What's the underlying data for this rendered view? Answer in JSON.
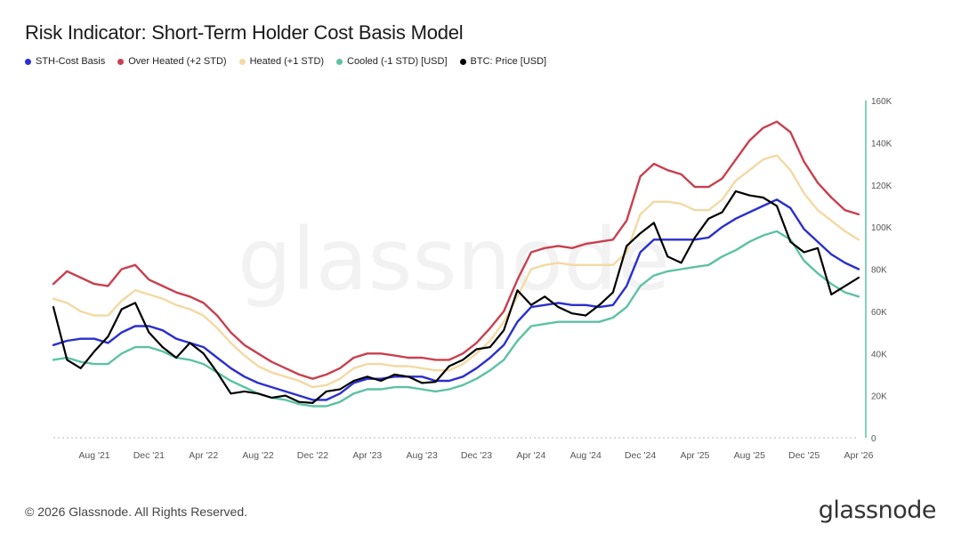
{
  "title": "Risk Indicator: Short-Term Holder Cost Basis Model",
  "footer": "© 2026 Glassnode. All Rights Reserved.",
  "brand": "glassnode",
  "watermark": "glassnode",
  "legend": [
    {
      "label": "STH-Cost Basis",
      "color": "#2a2fcf"
    },
    {
      "label": "Over Heated (+2 STD)",
      "color": "#c8404f"
    },
    {
      "label": "Heated (+1 STD)",
      "color": "#f3d9a3"
    },
    {
      "label": "Cooled (-1 STD) [USD]",
      "color": "#5cc2a4"
    },
    {
      "label": "BTC: Price [USD]",
      "color": "#000000"
    }
  ],
  "chart_data": {
    "type": "line",
    "ylim": [
      0,
      160000
    ],
    "y_ticks": [
      0,
      20000,
      40000,
      60000,
      80000,
      100000,
      120000,
      140000,
      160000
    ],
    "y_tick_labels": [
      "0",
      "20K",
      "40K",
      "60K",
      "80K",
      "100K",
      "120K",
      "140K",
      "160K"
    ],
    "x_tick_labels": [
      "Aug '21",
      "Dec '21",
      "Apr '22",
      "Aug '22",
      "Dec '22",
      "Apr '23",
      "Aug '23",
      "Dec '23",
      "Apr '24",
      "Aug '24",
      "Dec '24",
      "Apr '25",
      "Aug '25",
      "Dec '25",
      "Apr '26"
    ],
    "x_start": "2021-05",
    "x_end": "2026-04",
    "x": [
      "2021-05",
      "2021-06",
      "2021-07",
      "2021-08",
      "2021-09",
      "2021-10",
      "2021-11",
      "2021-12",
      "2022-01",
      "2022-02",
      "2022-03",
      "2022-04",
      "2022-05",
      "2022-06",
      "2022-07",
      "2022-08",
      "2022-09",
      "2022-10",
      "2022-11",
      "2022-12",
      "2023-01",
      "2023-02",
      "2023-03",
      "2023-04",
      "2023-05",
      "2023-06",
      "2023-07",
      "2023-08",
      "2023-09",
      "2023-10",
      "2023-11",
      "2023-12",
      "2024-01",
      "2024-02",
      "2024-03",
      "2024-04",
      "2024-05",
      "2024-06",
      "2024-07",
      "2024-08",
      "2024-09",
      "2024-10",
      "2024-11",
      "2024-12",
      "2025-01",
      "2025-02",
      "2025-03",
      "2025-04",
      "2025-05",
      "2025-06",
      "2025-07",
      "2025-08",
      "2025-09",
      "2025-10",
      "2025-11",
      "2025-12",
      "2026-01",
      "2026-02",
      "2026-03",
      "2026-04"
    ],
    "series": [
      {
        "name": "Over Heated (+2 STD)",
        "color": "#c8404f",
        "values": [
          73000,
          79000,
          76000,
          73000,
          72000,
          80000,
          82000,
          75000,
          72000,
          69000,
          67000,
          64000,
          58000,
          50000,
          44000,
          40000,
          36000,
          33000,
          30000,
          28000,
          30000,
          33000,
          38000,
          40000,
          40000,
          39000,
          38000,
          38000,
          37000,
          37000,
          40000,
          45000,
          52000,
          60000,
          75000,
          88000,
          90000,
          91000,
          90000,
          92000,
          93000,
          94000,
          103000,
          124000,
          130000,
          127000,
          125000,
          119000,
          119000,
          123000,
          132000,
          141000,
          147000,
          150000,
          145000,
          131000,
          121000,
          114000,
          108000,
          106000
        ]
      },
      {
        "name": "Heated (+1 STD)",
        "color": "#f3d9a3",
        "values": [
          66000,
          64000,
          60000,
          58000,
          58000,
          65000,
          70000,
          68000,
          66000,
          63000,
          61000,
          58000,
          52000,
          45000,
          39000,
          34000,
          31000,
          29000,
          27000,
          24000,
          25000,
          28000,
          33000,
          35000,
          35000,
          34000,
          34000,
          33000,
          32000,
          32000,
          35000,
          40000,
          46000,
          55000,
          67000,
          80000,
          82000,
          83000,
          82000,
          82000,
          82000,
          82000,
          88000,
          106000,
          112000,
          112000,
          111000,
          108000,
          108000,
          113000,
          122000,
          127000,
          132000,
          134000,
          127000,
          116000,
          108000,
          103000,
          98000,
          94000
        ]
      },
      {
        "name": "STH-Cost Basis",
        "color": "#2a2fcf",
        "values": [
          44000,
          46000,
          47000,
          47000,
          45000,
          50000,
          53000,
          53000,
          51000,
          47000,
          45000,
          43000,
          38000,
          33000,
          29000,
          26000,
          24000,
          22000,
          20000,
          18000,
          18000,
          21000,
          26000,
          28000,
          28000,
          29000,
          29000,
          29000,
          27000,
          27000,
          29000,
          33000,
          38000,
          44000,
          55000,
          62000,
          63000,
          64000,
          63000,
          63000,
          62000,
          63000,
          72000,
          88000,
          94000,
          94000,
          94000,
          94000,
          95000,
          100000,
          104000,
          107000,
          110000,
          113000,
          109000,
          99000,
          93000,
          87000,
          83000,
          80000
        ]
      },
      {
        "name": "Cooled (-1 STD) [USD]",
        "color": "#5cc2a4",
        "values": [
          37000,
          38000,
          36000,
          35000,
          35000,
          40000,
          43000,
          43000,
          41000,
          38000,
          37000,
          35000,
          31000,
          27000,
          24000,
          21000,
          19000,
          18000,
          16000,
          15000,
          15000,
          17000,
          21000,
          23000,
          23000,
          24000,
          24000,
          23000,
          22000,
          23000,
          25000,
          28000,
          32000,
          37000,
          46000,
          53000,
          54000,
          55000,
          55000,
          55000,
          55000,
          57000,
          62000,
          72000,
          77000,
          79000,
          80000,
          81000,
          82000,
          86000,
          89000,
          93000,
          96000,
          98000,
          94000,
          84000,
          78000,
          73000,
          69000,
          67000
        ]
      },
      {
        "name": "BTC: Price [USD]",
        "color": "#000000",
        "values": [
          62000,
          37000,
          33000,
          41000,
          48000,
          61000,
          64000,
          50000,
          43000,
          38000,
          45000,
          40000,
          31000,
          21000,
          22000,
          21000,
          19000,
          20000,
          17000,
          16500,
          22000,
          23000,
          27000,
          29000,
          27000,
          30000,
          29000,
          26000,
          26500,
          34000,
          37000,
          42000,
          43000,
          51000,
          70000,
          63000,
          67000,
          62000,
          59000,
          58000,
          63000,
          69000,
          91000,
          97000,
          102000,
          86000,
          83000,
          95000,
          104000,
          107000,
          117000,
          115000,
          114000,
          110000,
          93000,
          88000,
          90000,
          68000,
          72000,
          76000
        ]
      }
    ]
  }
}
